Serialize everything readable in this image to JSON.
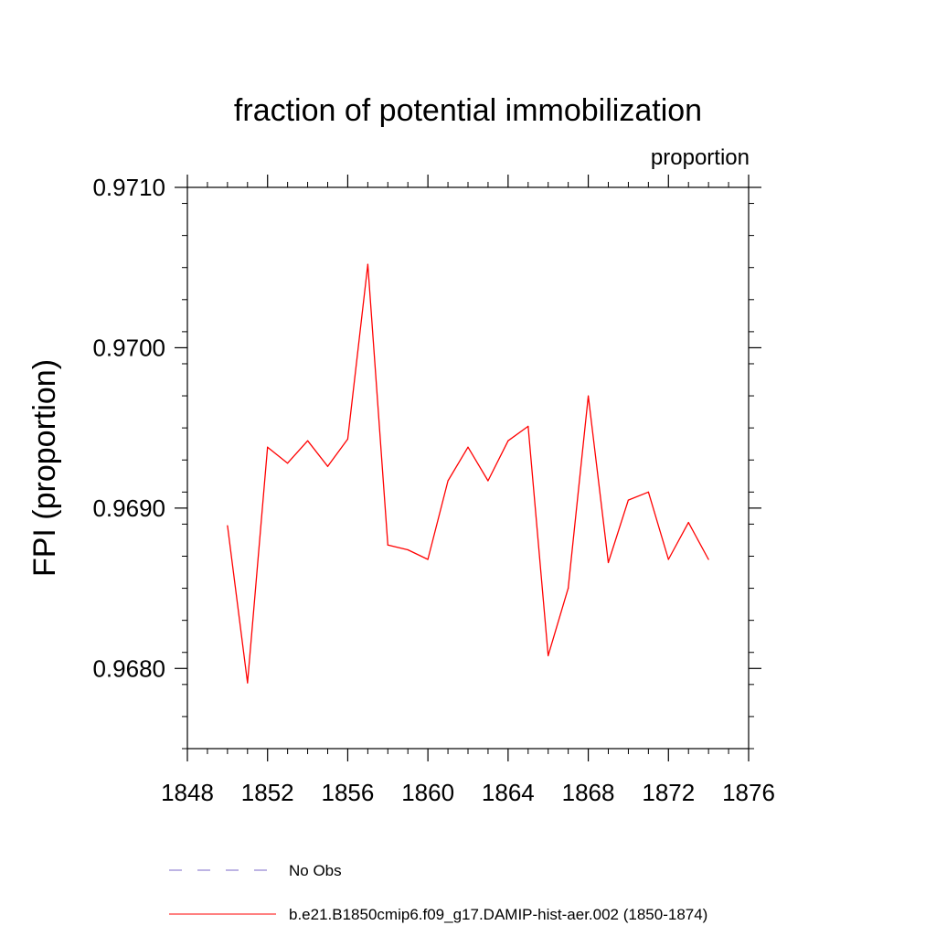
{
  "chart_data": {
    "type": "line",
    "title": "fraction of potential immobilization",
    "units_label": "proportion",
    "xlabel": "",
    "ylabel": "FPI  (proportion)",
    "xlim": [
      1848,
      1876
    ],
    "ylim": [
      0.9675,
      0.971
    ],
    "x_ticks": [
      1848,
      1852,
      1856,
      1860,
      1864,
      1868,
      1872,
      1876
    ],
    "x_tick_labels": [
      "1848",
      "1852",
      "1856",
      "1860",
      "1864",
      "1868",
      "1872",
      "1876"
    ],
    "y_ticks": [
      0.968,
      0.969,
      0.97,
      0.971
    ],
    "y_tick_labels": [
      "0.9680",
      "0.9690",
      "0.9700",
      "0.9710"
    ],
    "grid": false,
    "legend_position": "bottom",
    "series": [
      {
        "name": "b.e21.B1850cmip6.f09_g17.DAMIP-hist-aer.002 (1850-1874)",
        "color": "#ff0000",
        "style": "solid",
        "x": [
          1850,
          1851,
          1852,
          1853,
          1854,
          1855,
          1856,
          1857,
          1858,
          1859,
          1860,
          1861,
          1862,
          1863,
          1864,
          1865,
          1866,
          1867,
          1868,
          1869,
          1870,
          1871,
          1872,
          1873,
          1874
        ],
        "y": [
          0.96889,
          0.96791,
          0.96938,
          0.96928,
          0.96942,
          0.96926,
          0.96943,
          0.97052,
          0.96877,
          0.96874,
          0.96868,
          0.96917,
          0.96938,
          0.96917,
          0.96942,
          0.96951,
          0.96808,
          0.9685,
          0.9697,
          0.96866,
          0.96905,
          0.9691,
          0.96868,
          0.96891,
          0.96868
        ]
      }
    ],
    "legend": [
      {
        "label": "No Obs",
        "color": "#7b68c8",
        "style": "dashed"
      },
      {
        "label": "b.e21.B1850cmip6.f09_g17.DAMIP-hist-aer.002 (1850-1874)",
        "color": "#ff0000",
        "style": "solid"
      }
    ]
  }
}
